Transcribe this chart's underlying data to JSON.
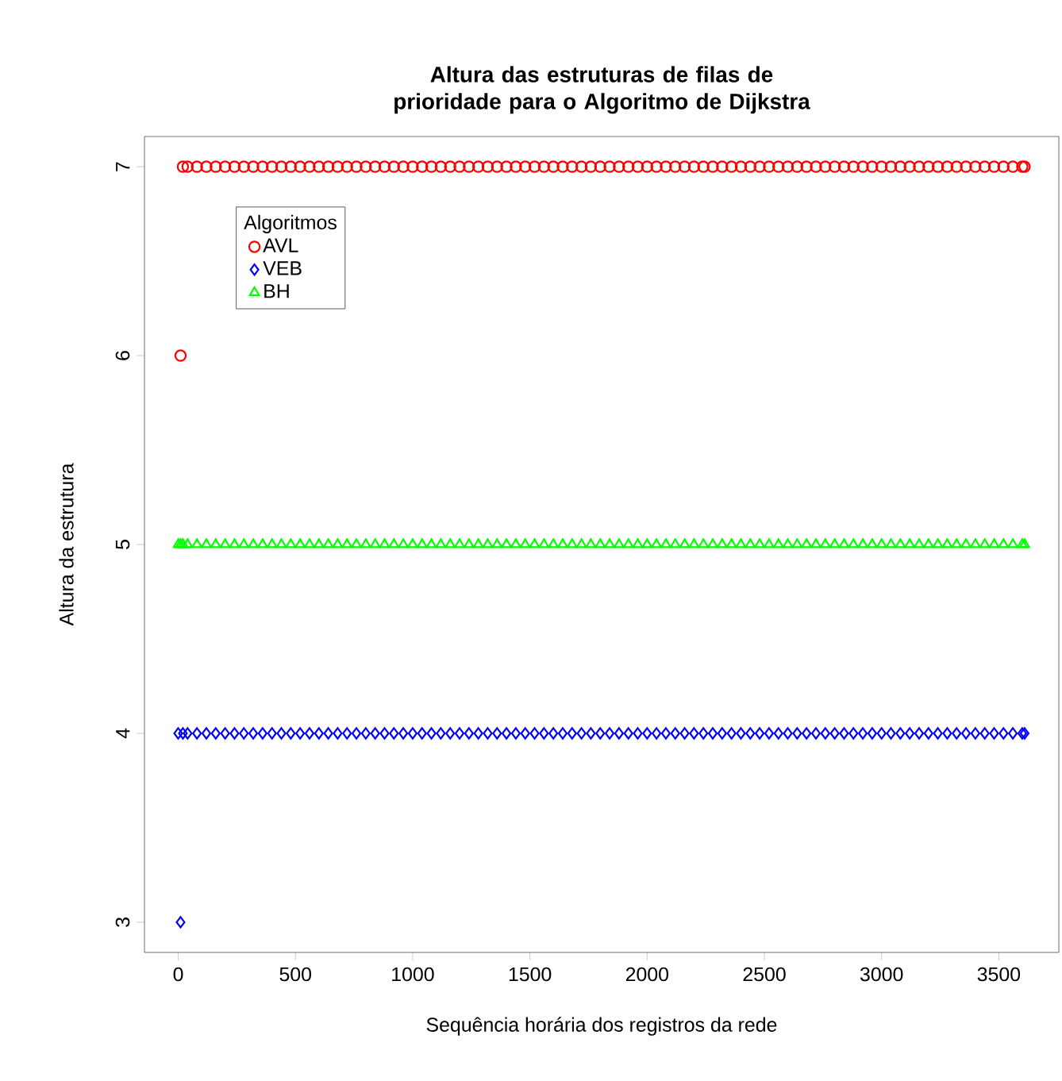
{
  "chart_data": {
    "type": "scatter",
    "title": "Altura das estruturas de filas de prioridade para o Algoritmo de Dijkstra",
    "xlabel": "Sequência horária dos registros da rede",
    "ylabel": "Altura da estrutura",
    "legend_title": "Algoritmos",
    "legend": "top left",
    "grid": false,
    "x": [
      0,
      10,
      20,
      40,
      80,
      120,
      160,
      200,
      240,
      280,
      320,
      360,
      400,
      440,
      480,
      520,
      560,
      600,
      640,
      680,
      720,
      760,
      800,
      840,
      880,
      920,
      960,
      1000,
      1040,
      1080,
      1120,
      1160,
      1200,
      1240,
      1280,
      1320,
      1360,
      1400,
      1440,
      1480,
      1520,
      1560,
      1600,
      1640,
      1680,
      1720,
      1760,
      1800,
      1840,
      1880,
      1920,
      1960,
      2000,
      2040,
      2080,
      2120,
      2160,
      2200,
      2240,
      2280,
      2320,
      2360,
      2400,
      2440,
      2480,
      2520,
      2560,
      2600,
      2640,
      2680,
      2720,
      2760,
      2800,
      2840,
      2880,
      2920,
      2960,
      3000,
      3040,
      3080,
      3120,
      3160,
      3200,
      3240,
      3280,
      3320,
      3360,
      3400,
      3440,
      3480,
      3520,
      3560,
      3600,
      3610
    ],
    "series": [
      {
        "name": "AVL",
        "color": "#ff0000",
        "marker": "circle",
        "values": [
          null,
          6,
          7,
          7,
          7,
          7,
          7,
          7,
          7,
          7,
          7,
          7,
          7,
          7,
          7,
          7,
          7,
          7,
          7,
          7,
          7,
          7,
          7,
          7,
          7,
          7,
          7,
          7,
          7,
          7,
          7,
          7,
          7,
          7,
          7,
          7,
          7,
          7,
          7,
          7,
          7,
          7,
          7,
          7,
          7,
          7,
          7,
          7,
          7,
          7,
          7,
          7,
          7,
          7,
          7,
          7,
          7,
          7,
          7,
          7,
          7,
          7,
          7,
          7,
          7,
          7,
          7,
          7,
          7,
          7,
          7,
          7,
          7,
          7,
          7,
          7,
          7,
          7,
          7,
          7,
          7,
          7,
          7,
          7,
          7,
          7,
          7,
          7,
          7,
          7,
          7,
          7,
          7,
          7
        ]
      },
      {
        "name": "VEB",
        "color": "#0000ff",
        "marker": "diamond",
        "values": [
          4,
          3,
          4,
          4,
          4,
          4,
          4,
          4,
          4,
          4,
          4,
          4,
          4,
          4,
          4,
          4,
          4,
          4,
          4,
          4,
          4,
          4,
          4,
          4,
          4,
          4,
          4,
          4,
          4,
          4,
          4,
          4,
          4,
          4,
          4,
          4,
          4,
          4,
          4,
          4,
          4,
          4,
          4,
          4,
          4,
          4,
          4,
          4,
          4,
          4,
          4,
          4,
          4,
          4,
          4,
          4,
          4,
          4,
          4,
          4,
          4,
          4,
          4,
          4,
          4,
          4,
          4,
          4,
          4,
          4,
          4,
          4,
          4,
          4,
          4,
          4,
          4,
          4,
          4,
          4,
          4,
          4,
          4,
          4,
          4,
          4,
          4,
          4,
          4,
          4,
          4,
          4,
          4,
          4
        ]
      },
      {
        "name": "BH",
        "color": "#00ff00",
        "marker": "triangle",
        "values": [
          5,
          5,
          5,
          5,
          5,
          5,
          5,
          5,
          5,
          5,
          5,
          5,
          5,
          5,
          5,
          5,
          5,
          5,
          5,
          5,
          5,
          5,
          5,
          5,
          5,
          5,
          5,
          5,
          5,
          5,
          5,
          5,
          5,
          5,
          5,
          5,
          5,
          5,
          5,
          5,
          5,
          5,
          5,
          5,
          5,
          5,
          5,
          5,
          5,
          5,
          5,
          5,
          5,
          5,
          5,
          5,
          5,
          5,
          5,
          5,
          5,
          5,
          5,
          5,
          5,
          5,
          5,
          5,
          5,
          5,
          5,
          5,
          5,
          5,
          5,
          5,
          5,
          5,
          5,
          5,
          5,
          5,
          5,
          5,
          5,
          5,
          5,
          5,
          5,
          5,
          5,
          5,
          5,
          5
        ]
      }
    ],
    "xlim": [
      -144,
      3756
    ],
    "xticks": [
      0,
      500,
      1000,
      1500,
      2000,
      2500,
      3000,
      3500
    ],
    "ylim": [
      2.84,
      7.16
    ],
    "yticks": [
      3,
      4,
      5,
      6,
      7
    ]
  }
}
